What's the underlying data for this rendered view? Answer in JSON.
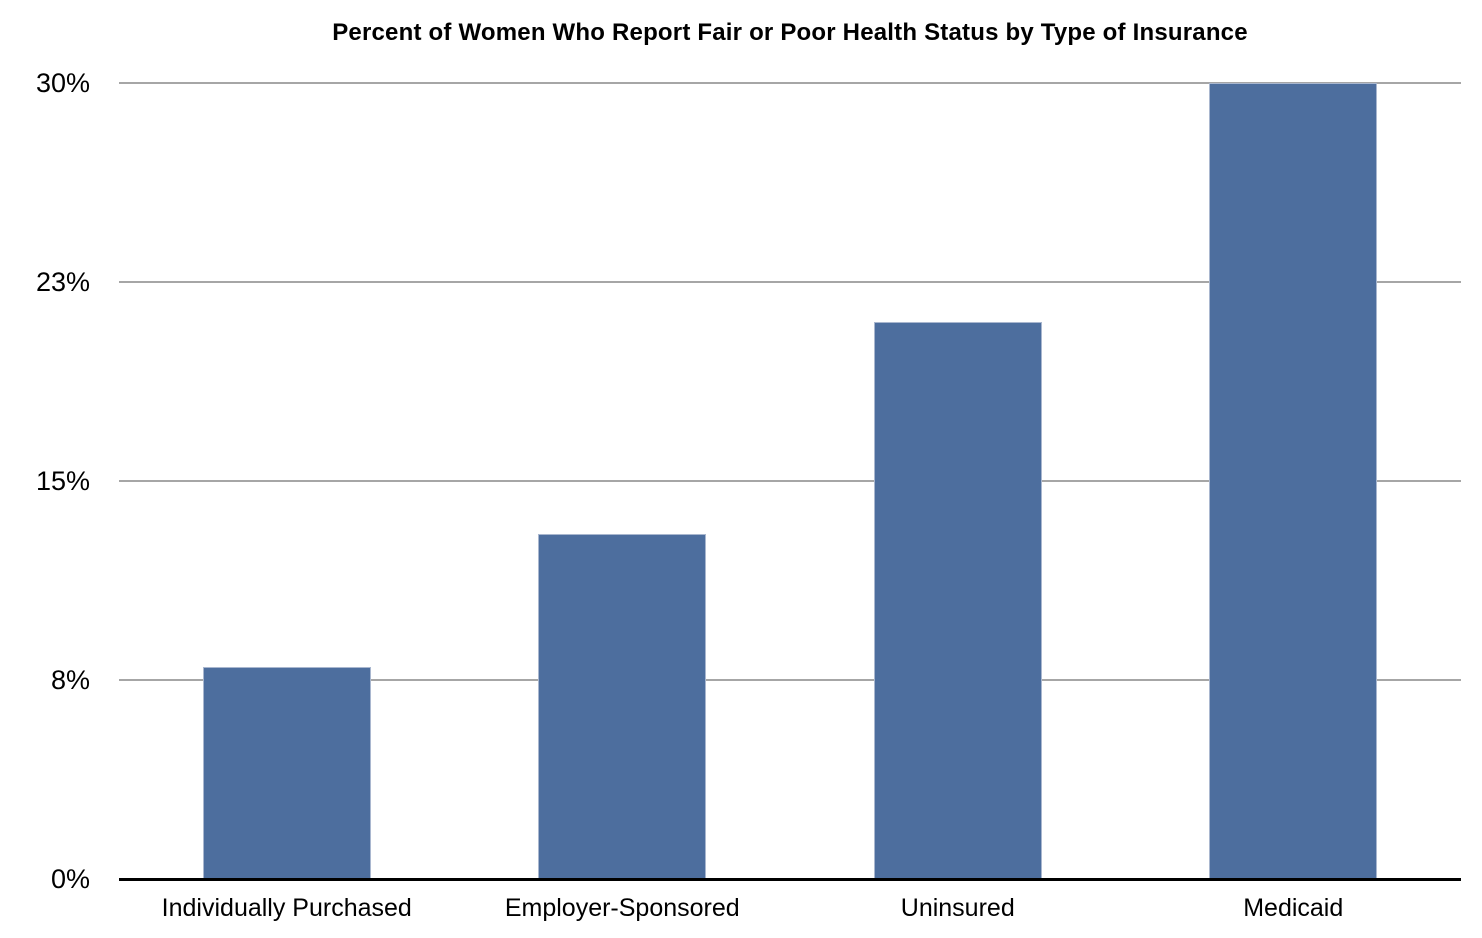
{
  "chart_data": {
    "type": "bar",
    "title": "Percent of Women Who Report Fair or Poor Health Status by Type of Insurance",
    "categories": [
      "Individually Purchased",
      "Employer-Sponsored",
      "Uninsured",
      "Medicaid"
    ],
    "values": [
      8,
      13,
      21,
      30
    ],
    "xlabel": "",
    "ylabel": "",
    "ylim": [
      0,
      30
    ],
    "y_ticks": [
      {
        "label": "0%",
        "value": 0
      },
      {
        "label": "8%",
        "value": 7.5
      },
      {
        "label": "15%",
        "value": 15
      },
      {
        "label": "23%",
        "value": 22.5
      },
      {
        "label": "30%",
        "value": 30
      }
    ],
    "grid": true,
    "legend": false,
    "colors": {
      "bar_fill": "#4d6e9e",
      "bar_border": "#a9b7cf",
      "gridline": "#a6a6a6",
      "axis": "#000000",
      "text": "#000000",
      "background": "#ffffff"
    }
  }
}
